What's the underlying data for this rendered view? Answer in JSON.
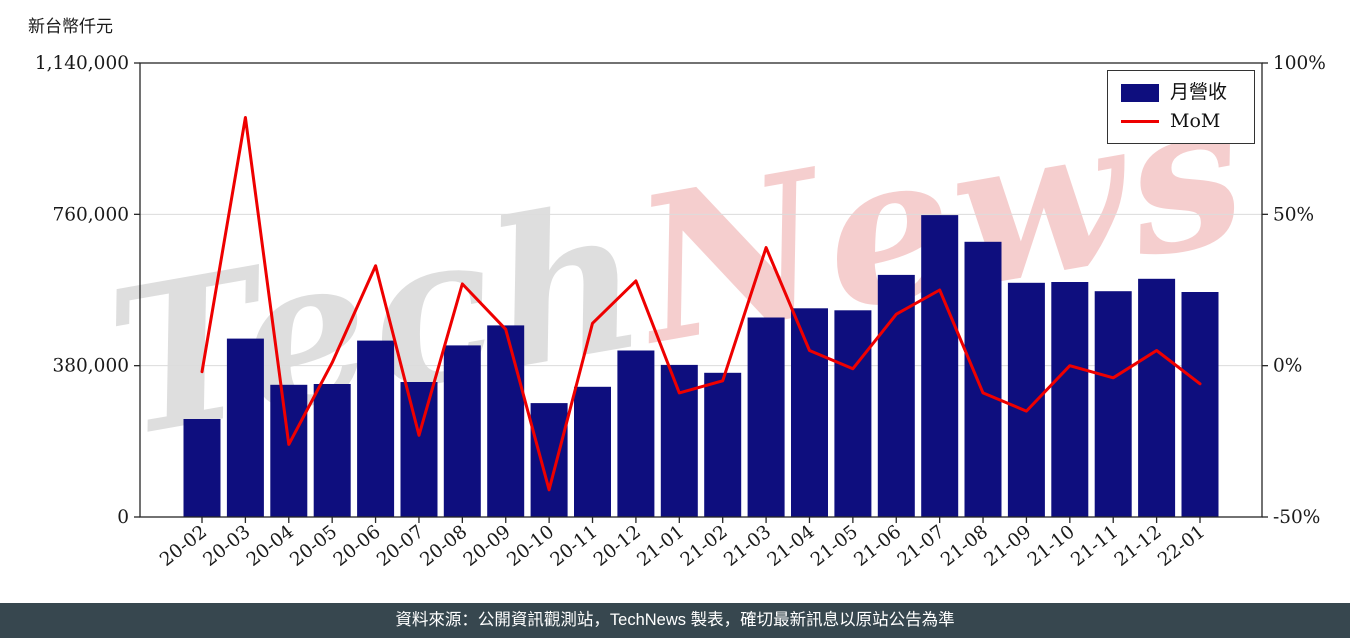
{
  "chart": {
    "unit_label": "新台幣仟元",
    "watermark": {
      "part1": "Tech",
      "part2": "News"
    },
    "legend": [
      {
        "label": "月營收",
        "type": "bar",
        "color": "#0e0e7e"
      },
      {
        "label": "MoM",
        "type": "line",
        "color": "#ee0000"
      }
    ],
    "footer": "資料來源：公開資訊觀測站，TechNews 製表，確切最新訊息以原站公告為準"
  },
  "chart_data": {
    "type": "bar+line",
    "title": "",
    "categories": [
      "20-02",
      "20-03",
      "20-04",
      "20-05",
      "20-06",
      "20-07",
      "20-08",
      "20-09",
      "20-10",
      "20-11",
      "20-12",
      "21-01",
      "21-02",
      "21-03",
      "21-04",
      "21-05",
      "21-06",
      "21-07",
      "21-08",
      "21-09",
      "21-10",
      "21-11",
      "21-12",
      "22-01"
    ],
    "series": [
      {
        "name": "月營收",
        "type": "bar",
        "axis": "left",
        "color": "#0e0e7e",
        "values": [
          246000,
          448000,
          332000,
          334000,
          443000,
          339000,
          431000,
          481000,
          286000,
          327000,
          418000,
          382000,
          362000,
          501000,
          524000,
          519000,
          608000,
          758000,
          691000,
          588000,
          590000,
          567000,
          598000,
          565000
        ]
      },
      {
        "name": "MoM",
        "type": "line",
        "axis": "right",
        "color": "#ee0000",
        "values_pct": [
          -2,
          82,
          -26,
          1,
          33,
          -23,
          27,
          12,
          -41,
          14,
          28,
          -9,
          -5,
          39,
          5,
          -1,
          17,
          25,
          -9,
          -15,
          0,
          -4,
          5,
          -6
        ]
      }
    ],
    "left_axis": {
      "label": "新台幣仟元",
      "ticks": [
        0,
        380000,
        760000,
        1140000
      ],
      "range": [
        0,
        1140000
      ]
    },
    "right_axis": {
      "ticks_pct": [
        -50,
        0,
        50,
        100
      ],
      "range_pct": [
        -50,
        100
      ]
    },
    "grid": true,
    "legend_position": "top-right",
    "x_label_rotation_deg": -38
  }
}
